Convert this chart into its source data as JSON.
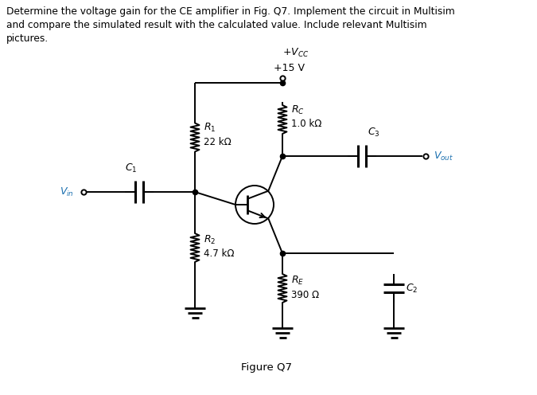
{
  "bg_color": "#ffffff",
  "text_color": "#000000",
  "blue_color": "#1a6faf",
  "line_color": "#000000",
  "title": "Determine the voltage gain for the CE amplifier in Fig. Q7. Implement the circuit in Multisim\nand compare the simulated result with the calculated value. Include relevant Multisim\npictures.",
  "figure_label": "Figure Q7",
  "vcc_text1": "+V",
  "vcc_sub": "CC",
  "vcc_text2": "+15 V",
  "R1_label": "R",
  "R1_sub": "1",
  "R1_val": "22 kΩ",
  "R2_label": "R",
  "R2_sub": "2",
  "R2_val": "4.7 kΩ",
  "RC_label": "R",
  "RC_sub": "C",
  "RC_val": "1.0 kΩ",
  "RE_label": "R",
  "RE_sub": "E",
  "RE_val": "390 Ω",
  "C1_label": "C",
  "C1_sub": "1",
  "C2_label": "C",
  "C2_sub": "2",
  "C3_label": "C",
  "C3_sub": "3",
  "Vin_label": "V",
  "Vin_sub": "in",
  "Vout_label": "V",
  "Vout_sub": "out"
}
